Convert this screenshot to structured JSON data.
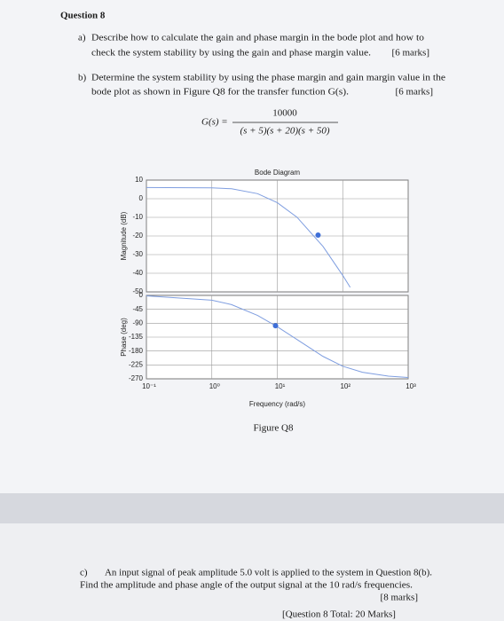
{
  "document": {
    "title": "Question 8",
    "parts": [
      {
        "label": "a)",
        "lines": [
          "Describe how to calculate the gain and phase margin in the bode plot and how to",
          "check the system stability by using the gain and phase margin value."
        ],
        "marks": "[6 marks]"
      },
      {
        "label": "b)",
        "lines": [
          "Determine the system stability by using the phase margin and gain margin value in the",
          "bode plot as shown in Figure Q8 for the transfer function G(s)."
        ],
        "marks": "[6 marks]"
      },
      {
        "label": "c)",
        "lines": [
          "An input signal of peak amplitude 5.0 volt is applied to the system in Question 8(b).",
          "Find the amplitude and phase angle of the output signal at the 10 rad/s frequencies."
        ],
        "marks": "[8 marks]"
      }
    ],
    "formula": {
      "lhs": "G(s) =",
      "numerator": "10000",
      "denominator": "(s + 5)(s + 20)(s + 50)"
    },
    "figure_caption": "Figure Q8",
    "total": "[Question 8 Total: 20 Marks]"
  },
  "chart_data": [
    {
      "type": "line",
      "title": "Bode Diagram",
      "ylabel": "Magnitude (dB)",
      "log_x": true,
      "grid": true,
      "xlim": [
        0.1,
        1000
      ],
      "ylim": [
        -50,
        10
      ],
      "yticks": [
        10,
        0,
        -10,
        -20,
        -30,
        -40,
        -50
      ],
      "x": [
        0.1,
        1,
        2,
        5,
        10,
        20,
        50,
        100,
        130
      ],
      "series": [
        {
          "color": "#7f9ee0",
          "values": [
            6.02,
            5.84,
            5.33,
            2.71,
            -2.11,
            -9.93,
            -25.63,
            -41.15,
            -47.55
          ]
        }
      ],
      "markers": [
        {
          "x": 42,
          "y": -19.5,
          "color": "#3f6fd8"
        }
      ]
    },
    {
      "type": "line",
      "ylabel": "Phase (deg)",
      "xlabel": "Frequency (rad/s)",
      "log_x": true,
      "grid": true,
      "xlim": [
        0.1,
        1000
      ],
      "ylim": [
        -270,
        0
      ],
      "yticks": [
        0,
        -45,
        -90,
        -135,
        -180,
        -225,
        -270
      ],
      "xticks": [
        {
          "value": 0.1,
          "label": "10⁻¹"
        },
        {
          "value": 1,
          "label": "10⁰"
        },
        {
          "value": 10,
          "label": "10¹"
        },
        {
          "value": 100,
          "label": "10²"
        },
        {
          "value": 1000,
          "label": "10³"
        }
      ],
      "x": [
        0.1,
        1,
        2,
        5,
        10,
        20,
        50,
        100,
        200,
        500,
        1000
      ],
      "series": [
        {
          "color": "#7f9ee0",
          "values": [
            -1.55,
            -15.32,
            -29.8,
            -64.75,
            -101.31,
            -142.76,
            -197.49,
            -229.26,
            -248.82,
            -261.43,
            -265.7
          ]
        }
      ],
      "markers": [
        {
          "x": 9.4,
          "y": -98,
          "color": "#3f6fd8"
        }
      ]
    }
  ]
}
